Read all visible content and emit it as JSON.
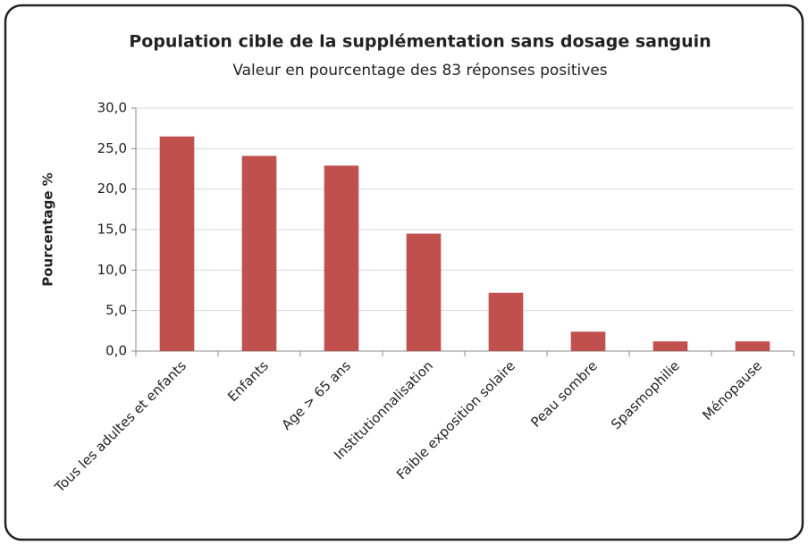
{
  "chart_data": {
    "type": "bar",
    "title": "Population cible de la supplémentation sans dosage sanguin",
    "subtitle": "Valeur en pourcentage des 83 réponses positives",
    "y_label": "Pourcentage %",
    "categories": [
      "Tous les adultes et enfants",
      "Enfants",
      "Age > 65 ans",
      "Institutionnalisation",
      "Faible exposition solaire",
      "Peau sombre",
      "Spasmophilie",
      "Ménopause"
    ],
    "values": [
      26.5,
      24.1,
      22.9,
      14.5,
      7.2,
      2.4,
      1.2,
      1.2
    ],
    "color": "#c0504d",
    "ylim": [
      0,
      30
    ],
    "yticks": [
      {
        "value": 0,
        "label": "0,0"
      },
      {
        "value": 5,
        "label": "5,0"
      },
      {
        "value": 10,
        "label": "10,0"
      },
      {
        "value": 15,
        "label": "15,0"
      },
      {
        "value": 20,
        "label": "20,0"
      },
      {
        "value": 25,
        "label": "25,0"
      },
      {
        "value": 30,
        "label": "30,0"
      }
    ],
    "grid": true
  }
}
